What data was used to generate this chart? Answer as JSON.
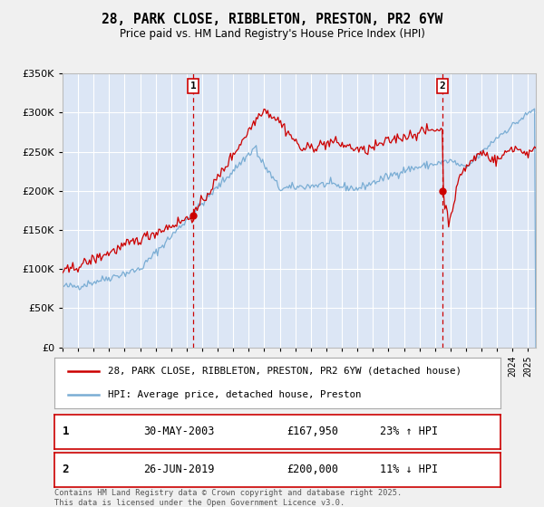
{
  "title": "28, PARK CLOSE, RIBBLETON, PRESTON, PR2 6YW",
  "subtitle": "Price paid vs. HM Land Registry's House Price Index (HPI)",
  "legend_line1": "28, PARK CLOSE, RIBBLETON, PRESTON, PR2 6YW (detached house)",
  "legend_line2": "HPI: Average price, detached house, Preston",
  "transaction1_date": "30-MAY-2003",
  "transaction1_price": "£167,950",
  "transaction1_hpi": "23% ↑ HPI",
  "transaction2_date": "26-JUN-2019",
  "transaction2_price": "£200,000",
  "transaction2_hpi": "11% ↓ HPI",
  "footer": "Contains HM Land Registry data © Crown copyright and database right 2025.\nThis data is licensed under the Open Government Licence v3.0.",
  "ylim": [
    0,
    350000
  ],
  "yticks": [
    0,
    50000,
    100000,
    150000,
    200000,
    250000,
    300000,
    350000
  ],
  "xlim_start": 1995.0,
  "xlim_end": 2025.5,
  "vline1_x": 2003.42,
  "vline2_x": 2019.49,
  "dot1_x": 2003.42,
  "dot1_y": 167950,
  "dot2_x": 2019.49,
  "dot2_y": 200000,
  "property_color": "#cc0000",
  "hpi_color": "#7aadd4",
  "vline_color": "#cc0000",
  "background_color": "#f0f0f0",
  "plot_bg_color": "#dce6f5"
}
